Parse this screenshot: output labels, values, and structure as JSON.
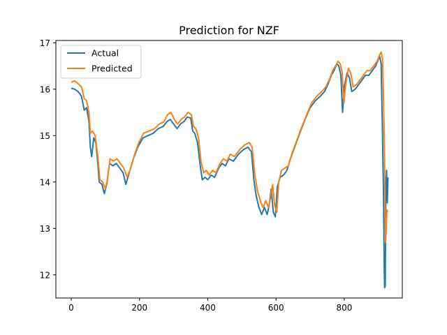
{
  "chart_data": {
    "type": "line",
    "title": "Prediction for NZF",
    "xlabel": "",
    "ylabel": "",
    "xlim": [
      -45,
      970
    ],
    "ylim": [
      11.5,
      17.05
    ],
    "x_ticks": [
      0,
      200,
      400,
      600,
      800
    ],
    "y_ticks": [
      12,
      13,
      14,
      15,
      16,
      17
    ],
    "grid": false,
    "legend_placement": "upper-left",
    "series": [
      {
        "name": "Actual",
        "color": "#1f77b4",
        "points": [
          [
            0,
            16.02
          ],
          [
            10,
            16.0
          ],
          [
            20,
            15.95
          ],
          [
            30,
            15.85
          ],
          [
            38,
            15.55
          ],
          [
            45,
            15.6
          ],
          [
            52,
            15.3
          ],
          [
            56,
            14.75
          ],
          [
            60,
            14.55
          ],
          [
            66,
            14.95
          ],
          [
            72,
            14.85
          ],
          [
            78,
            14.4
          ],
          [
            82,
            14.0
          ],
          [
            90,
            13.95
          ],
          [
            97,
            13.75
          ],
          [
            104,
            13.95
          ],
          [
            112,
            14.4
          ],
          [
            122,
            14.35
          ],
          [
            132,
            14.4
          ],
          [
            142,
            14.3
          ],
          [
            152,
            14.2
          ],
          [
            160,
            13.95
          ],
          [
            170,
            14.2
          ],
          [
            182,
            14.5
          ],
          [
            195,
            14.75
          ],
          [
            210,
            14.95
          ],
          [
            225,
            15.0
          ],
          [
            240,
            15.05
          ],
          [
            255,
            15.15
          ],
          [
            270,
            15.2
          ],
          [
            280,
            15.3
          ],
          [
            290,
            15.35
          ],
          [
            300,
            15.25
          ],
          [
            310,
            15.15
          ],
          [
            320,
            15.25
          ],
          [
            330,
            15.3
          ],
          [
            340,
            15.4
          ],
          [
            350,
            15.38
          ],
          [
            356,
            15.1
          ],
          [
            362,
            15.05
          ],
          [
            370,
            14.85
          ],
          [
            378,
            14.35
          ],
          [
            384,
            14.05
          ],
          [
            392,
            14.1
          ],
          [
            400,
            14.05
          ],
          [
            410,
            14.15
          ],
          [
            420,
            14.1
          ],
          [
            432,
            14.3
          ],
          [
            442,
            14.4
          ],
          [
            452,
            14.35
          ],
          [
            462,
            14.5
          ],
          [
            475,
            14.45
          ],
          [
            490,
            14.6
          ],
          [
            505,
            14.7
          ],
          [
            518,
            14.75
          ],
          [
            528,
            14.65
          ],
          [
            535,
            14.05
          ],
          [
            542,
            13.7
          ],
          [
            550,
            13.45
          ],
          [
            558,
            13.3
          ],
          [
            566,
            13.45
          ],
          [
            574,
            13.3
          ],
          [
            580,
            13.5
          ],
          [
            586,
            13.85
          ],
          [
            592,
            13.35
          ],
          [
            598,
            13.25
          ],
          [
            604,
            13.9
          ],
          [
            612,
            14.1
          ],
          [
            622,
            14.15
          ],
          [
            632,
            14.25
          ],
          [
            642,
            14.5
          ],
          [
            652,
            14.7
          ],
          [
            662,
            14.9
          ],
          [
            672,
            15.1
          ],
          [
            685,
            15.35
          ],
          [
            700,
            15.6
          ],
          [
            715,
            15.75
          ],
          [
            730,
            15.85
          ],
          [
            742,
            15.95
          ],
          [
            752,
            16.1
          ],
          [
            762,
            16.3
          ],
          [
            770,
            16.4
          ],
          [
            778,
            16.55
          ],
          [
            784,
            16.5
          ],
          [
            790,
            16.3
          ],
          [
            795,
            15.5
          ],
          [
            800,
            16.05
          ],
          [
            808,
            16.35
          ],
          [
            815,
            16.25
          ],
          [
            822,
            15.95
          ],
          [
            832,
            16.0
          ],
          [
            842,
            16.1
          ],
          [
            852,
            16.2
          ],
          [
            862,
            16.3
          ],
          [
            872,
            16.3
          ],
          [
            882,
            16.4
          ],
          [
            892,
            16.5
          ],
          [
            900,
            16.65
          ],
          [
            904,
            16.7
          ],
          [
            908,
            16.55
          ],
          [
            912,
            15.0
          ],
          [
            915,
            13.7
          ],
          [
            917,
            12.2
          ],
          [
            918,
            11.72
          ],
          [
            920,
            11.75
          ],
          [
            922,
            13.9
          ],
          [
            924,
            14.25
          ],
          [
            926,
            13.55
          ],
          [
            928,
            14.1
          ]
        ]
      },
      {
        "name": "Predicted",
        "color": "#ff7f0e",
        "points": [
          [
            0,
            16.15
          ],
          [
            10,
            16.18
          ],
          [
            20,
            16.12
          ],
          [
            30,
            16.05
          ],
          [
            38,
            15.8
          ],
          [
            45,
            15.75
          ],
          [
            52,
            15.5
          ],
          [
            56,
            15.05
          ],
          [
            62,
            15.1
          ],
          [
            70,
            15.0
          ],
          [
            78,
            14.55
          ],
          [
            84,
            14.05
          ],
          [
            92,
            14.0
          ],
          [
            100,
            13.85
          ],
          [
            106,
            14.05
          ],
          [
            114,
            14.5
          ],
          [
            124,
            14.45
          ],
          [
            134,
            14.5
          ],
          [
            144,
            14.4
          ],
          [
            154,
            14.3
          ],
          [
            164,
            14.1
          ],
          [
            174,
            14.3
          ],
          [
            186,
            14.6
          ],
          [
            198,
            14.85
          ],
          [
            212,
            15.05
          ],
          [
            228,
            15.1
          ],
          [
            244,
            15.15
          ],
          [
            258,
            15.25
          ],
          [
            272,
            15.3
          ],
          [
            282,
            15.45
          ],
          [
            292,
            15.5
          ],
          [
            302,
            15.35
          ],
          [
            312,
            15.25
          ],
          [
            322,
            15.35
          ],
          [
            332,
            15.4
          ],
          [
            342,
            15.5
          ],
          [
            352,
            15.45
          ],
          [
            358,
            15.2
          ],
          [
            365,
            15.15
          ],
          [
            373,
            14.95
          ],
          [
            380,
            14.45
          ],
          [
            388,
            14.2
          ],
          [
            396,
            14.25
          ],
          [
            404,
            14.15
          ],
          [
            414,
            14.25
          ],
          [
            424,
            14.2
          ],
          [
            436,
            14.4
          ],
          [
            446,
            14.5
          ],
          [
            456,
            14.45
          ],
          [
            466,
            14.6
          ],
          [
            478,
            14.55
          ],
          [
            494,
            14.7
          ],
          [
            508,
            14.8
          ],
          [
            522,
            14.85
          ],
          [
            530,
            14.75
          ],
          [
            538,
            14.15
          ],
          [
            546,
            13.8
          ],
          [
            554,
            13.6
          ],
          [
            562,
            13.45
          ],
          [
            570,
            13.6
          ],
          [
            578,
            13.45
          ],
          [
            584,
            13.65
          ],
          [
            590,
            13.95
          ],
          [
            596,
            13.5
          ],
          [
            602,
            13.35
          ],
          [
            608,
            14.0
          ],
          [
            616,
            14.25
          ],
          [
            626,
            14.3
          ],
          [
            636,
            14.35
          ],
          [
            646,
            14.6
          ],
          [
            656,
            14.8
          ],
          [
            666,
            15.0
          ],
          [
            676,
            15.2
          ],
          [
            690,
            15.45
          ],
          [
            704,
            15.7
          ],
          [
            720,
            15.85
          ],
          [
            734,
            15.95
          ],
          [
            746,
            16.05
          ],
          [
            756,
            16.2
          ],
          [
            766,
            16.4
          ],
          [
            774,
            16.5
          ],
          [
            782,
            16.6
          ],
          [
            788,
            16.55
          ],
          [
            794,
            16.35
          ],
          [
            799,
            15.7
          ],
          [
            804,
            16.1
          ],
          [
            812,
            16.45
          ],
          [
            819,
            16.35
          ],
          [
            826,
            16.05
          ],
          [
            836,
            16.1
          ],
          [
            846,
            16.2
          ],
          [
            856,
            16.3
          ],
          [
            866,
            16.4
          ],
          [
            876,
            16.4
          ],
          [
            886,
            16.5
          ],
          [
            896,
            16.6
          ],
          [
            904,
            16.75
          ],
          [
            908,
            16.8
          ],
          [
            912,
            16.65
          ],
          [
            915,
            15.8
          ],
          [
            918,
            14.5
          ],
          [
            920,
            13.2
          ],
          [
            921,
            12.7
          ],
          [
            923,
            13.0
          ],
          [
            925,
            13.4
          ],
          [
            927,
            13.35
          ]
        ]
      }
    ]
  }
}
